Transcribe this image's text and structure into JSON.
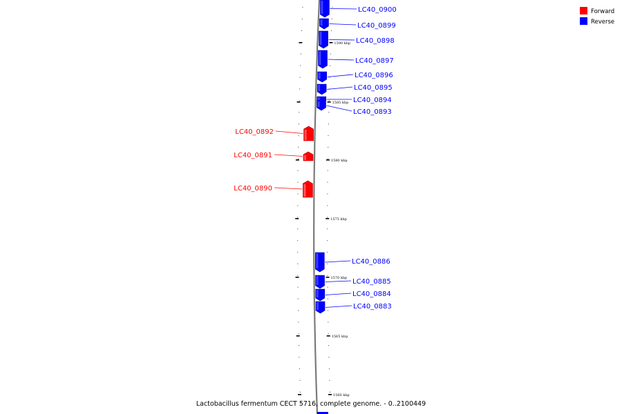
{
  "caption": "Lactobacillus fermentum CECT 5716, complete genome. - 0..2100449",
  "colors": {
    "forward": "#ff0000",
    "reverse": "#0000ff",
    "backbone": "#7a7a7a"
  },
  "legend": [
    {
      "label": "Forward",
      "color": "#ff0000"
    },
    {
      "label": "Reverse",
      "color": "#0000ff"
    }
  ],
  "scale_labels": [
    "1590 kbp",
    "1585 kbp",
    "1580 kbp",
    "1575 kbp",
    "1570 kbp",
    "1565 kbp",
    "1560 kbp"
  ],
  "genes": [
    {
      "label": "LC40_0900",
      "strand": "reverse"
    },
    {
      "label": "LC40_0899",
      "strand": "reverse"
    },
    {
      "label": "LC40_0898",
      "strand": "reverse"
    },
    {
      "label": "LC40_0897",
      "strand": "reverse"
    },
    {
      "label": "LC40_0896",
      "strand": "reverse"
    },
    {
      "label": "LC40_0895",
      "strand": "reverse"
    },
    {
      "label": "LC40_0894",
      "strand": "reverse"
    },
    {
      "label": "LC40_0893",
      "strand": "reverse"
    },
    {
      "label": "LC40_0892",
      "strand": "forward"
    },
    {
      "label": "LC40_0891",
      "strand": "forward"
    },
    {
      "label": "LC40_0890",
      "strand": "forward"
    },
    {
      "label": "LC40_0886",
      "strand": "reverse"
    },
    {
      "label": "LC40_0885",
      "strand": "reverse"
    },
    {
      "label": "LC40_0884",
      "strand": "reverse"
    },
    {
      "label": "LC40_0883",
      "strand": "reverse"
    }
  ]
}
